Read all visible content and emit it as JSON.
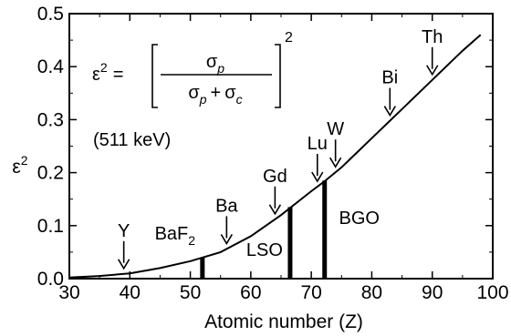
{
  "chart_data": {
    "type": "line",
    "xlabel": "Atomic number (Z)",
    "ylabel": "ε",
    "ylabel_sup": "2",
    "xlim": [
      30,
      100
    ],
    "ylim": [
      0.0,
      0.5
    ],
    "x_ticks": [
      30,
      40,
      50,
      60,
      70,
      80,
      90,
      100
    ],
    "y_ticks": [
      0.0,
      0.1,
      0.2,
      0.3,
      0.4,
      0.5
    ],
    "x_tick_labels": [
      "30",
      "40",
      "50",
      "60",
      "70",
      "80",
      "90",
      "100"
    ],
    "y_tick_labels": [
      "0.0",
      "0.1",
      "0.2",
      "0.3",
      "0.4",
      "0.5"
    ],
    "grid": false,
    "series": [
      {
        "x": [
          30,
          35,
          40,
          45,
          50,
          55,
          60,
          65,
          70,
          72,
          75,
          80,
          85,
          90,
          95,
          98
        ],
        "y": [
          0.002,
          0.005,
          0.01,
          0.02,
          0.033,
          0.05,
          0.08,
          0.12,
          0.165,
          0.182,
          0.21,
          0.265,
          0.32,
          0.375,
          0.43,
          0.46
        ]
      }
    ],
    "formula": {
      "lhs": "ε",
      "lhs_sup": "2",
      "equals": "=",
      "numerator": "σ",
      "numerator_sub": "p",
      "denominator_a": "σ",
      "denominator_a_sub": "p",
      "plus": "+",
      "denominator_b": "σ",
      "denominator_b_sub": "c",
      "power": "2",
      "energy": "(511 keV)"
    },
    "element_arrows": [
      {
        "label": "Y",
        "z": 39
      },
      {
        "label": "Ba",
        "z": 56
      },
      {
        "label": "Gd",
        "z": 64
      },
      {
        "label": "Lu",
        "z": 71
      },
      {
        "label": "W",
        "z": 74
      },
      {
        "label": "Bi",
        "z": 83
      },
      {
        "label": "Th",
        "z": 90
      }
    ],
    "crystal_bars": [
      {
        "label": "BaF",
        "label_sub": "2",
        "z": 52,
        "value": 0.04
      },
      {
        "label": "LSO",
        "z": 66.5,
        "value": 0.135
      },
      {
        "label": "BGO",
        "z": 72.2,
        "value": 0.185
      }
    ]
  }
}
